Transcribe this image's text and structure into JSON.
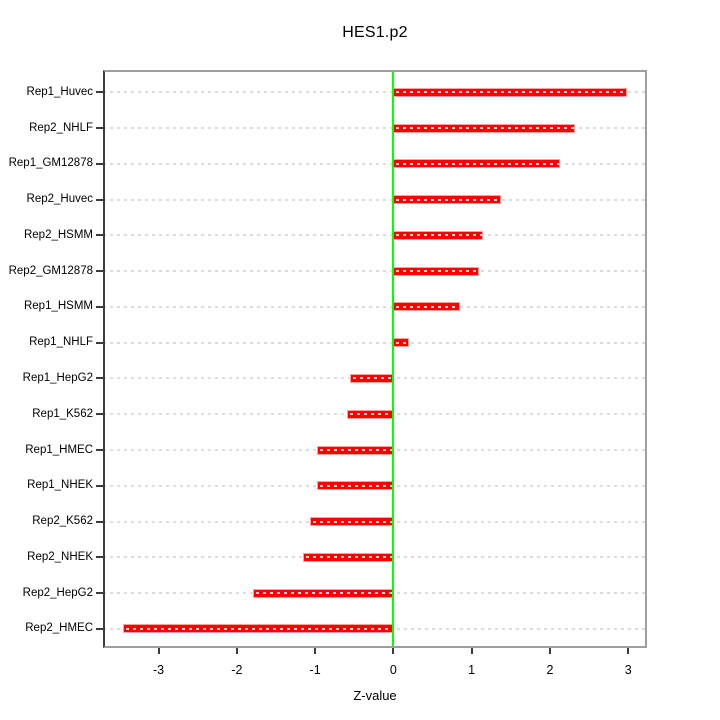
{
  "chart_data": {
    "type": "bar",
    "orientation": "horizontal",
    "title": "HES1.p2",
    "xlabel": "Z-value",
    "ylabel": "",
    "categories": [
      "Rep1_Huvec",
      "Rep2_NHLF",
      "Rep1_GM12878",
      "Rep2_Huvec",
      "Rep2_HSMM",
      "Rep2_GM12878",
      "Rep1_HSMM",
      "Rep1_NHLF",
      "Rep1_HepG2",
      "Rep1_K562",
      "Rep1_HMEC",
      "Rep1_NHEK",
      "Rep2_K562",
      "Rep2_NHEK",
      "Rep2_HepG2",
      "Rep2_HMEC"
    ],
    "values": [
      2.98,
      2.32,
      2.13,
      1.38,
      1.15,
      1.1,
      0.85,
      0.2,
      -0.55,
      -0.59,
      -0.98,
      -0.98,
      -1.06,
      -1.16,
      -1.79,
      -3.45
    ],
    "bar_origin": 0,
    "zero_line": 0,
    "xlim": [
      -3.71,
      3.24
    ],
    "xticks": [
      -3,
      -2,
      -1,
      0,
      1,
      2,
      3
    ],
    "grid": {
      "style": "dashed",
      "per_category": true
    },
    "legend_position": "none",
    "colors": {
      "bar_fill": "#ff0000",
      "bar_edge": "#ffa0a0",
      "bar_center_dash": "rgba(255,255,255,0.82)",
      "grid": "#dcdcdc",
      "zero_line": "#00ff00",
      "axis_ticks": "#3c3c3c",
      "axis_line": "#3c3c3c",
      "box_border": "#9e9e9e",
      "text": "#000000"
    }
  }
}
